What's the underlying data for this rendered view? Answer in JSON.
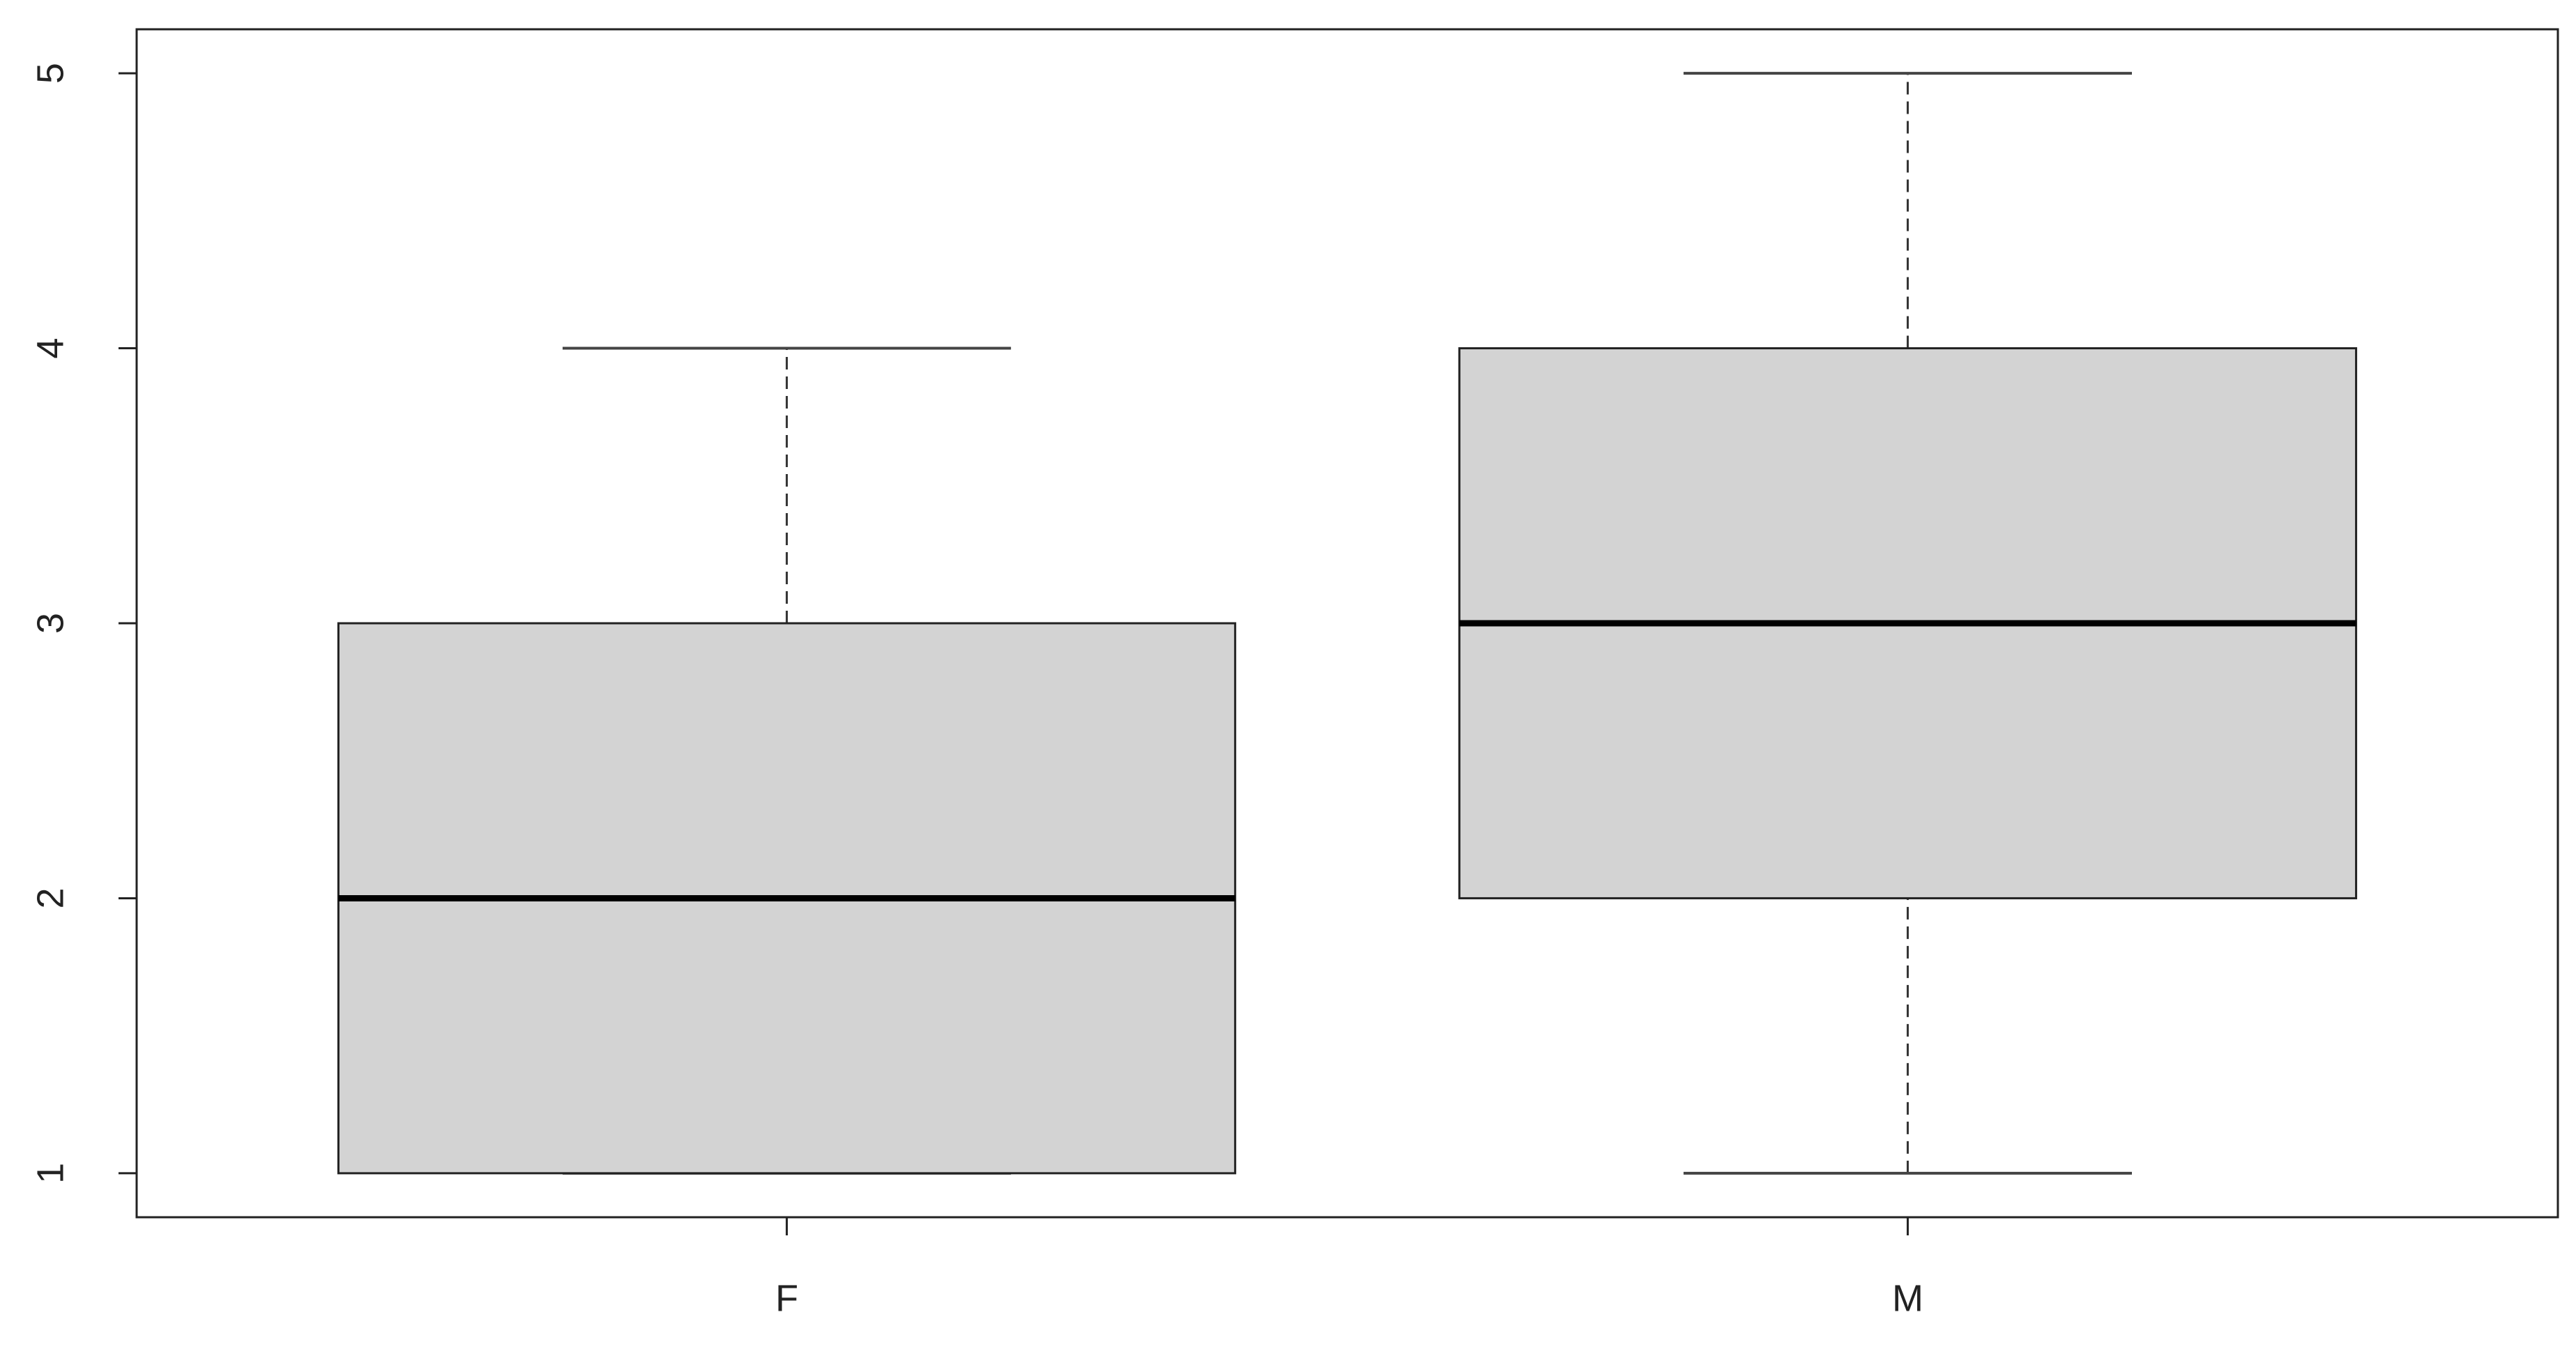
{
  "chart_data": {
    "type": "box",
    "categories": [
      "F",
      "M"
    ],
    "min": [
      1,
      1
    ],
    "q1": [
      1,
      2
    ],
    "median": [
      2,
      3
    ],
    "q3": [
      3,
      4
    ],
    "max": [
      4,
      5
    ],
    "color": "#d3d3d3",
    "ylim": [
      0.84,
      5.16
    ],
    "yticks": [
      1,
      2,
      3,
      4,
      5
    ]
  }
}
